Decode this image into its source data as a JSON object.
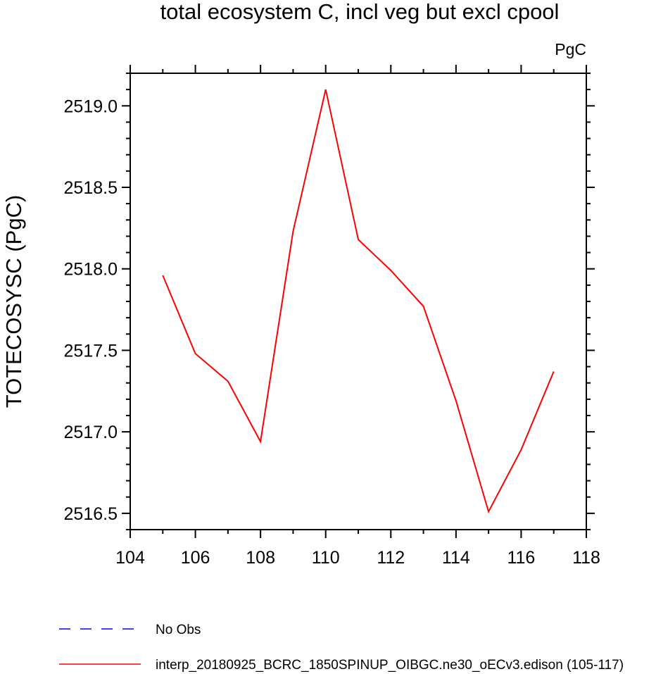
{
  "chart_data": {
    "type": "line",
    "title": "total ecosystem C, incl veg but excl cpool",
    "units_label": "PgC",
    "xlabel": "",
    "ylabel": "TOTECOSYSC  (PgC)",
    "xlim": [
      104,
      118
    ],
    "ylim": [
      2516.4,
      2519.2
    ],
    "x_ticks": [
      "104",
      "106",
      "108",
      "110",
      "112",
      "114",
      "116",
      "118"
    ],
    "y_ticks": [
      "2516.5",
      "2517.0",
      "2517.5",
      "2518.0",
      "2518.5",
      "2519.0"
    ],
    "grid": false,
    "legend_position": "bottom-left",
    "series": [
      {
        "name": "interp_20180925_BCRC_1850SPINUP_OIBGC.ne30_oECv3.edison (105-117)",
        "color": "#ff0000",
        "style": "solid",
        "x": [
          105,
          106,
          107,
          108,
          109,
          110,
          111,
          112,
          113,
          114,
          115,
          116,
          117
        ],
        "y": [
          2517.96,
          2517.48,
          2517.31,
          2516.94,
          2518.23,
          2519.1,
          2518.18,
          2517.99,
          2517.77,
          2517.19,
          2516.51,
          2516.89,
          2517.37
        ]
      }
    ],
    "legend": [
      {
        "label": "No Obs",
        "color": "#0000ff",
        "style": "dashed"
      },
      {
        "label": "interp_20180925_BCRC_1850SPINUP_OIBGC.ne30_oECv3.edison (105-117)",
        "color": "#ff0000",
        "style": "solid"
      }
    ]
  }
}
